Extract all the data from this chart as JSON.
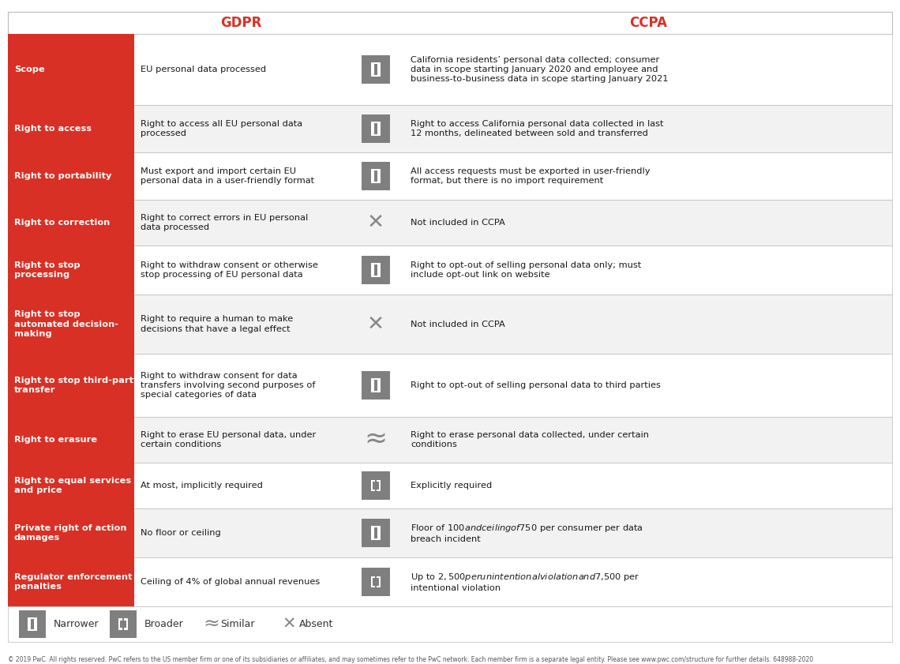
{
  "red_color": "#D93025",
  "gray_icon": "#888888",
  "border_color": "#BBBBBB",
  "rows": [
    {
      "topic": "Scope",
      "gdpr_text": "EU personal data processed",
      "icon": "narrower",
      "ccpa_text": "California residents’ personal data collected; consumer\ndata in scope starting January 2020 and employee and\nbusiness-to-business data in scope starting January 2021"
    },
    {
      "topic": "Right to access",
      "gdpr_text": "Right to access all EU personal data\nprocessed",
      "icon": "narrower",
      "ccpa_text": "Right to access California personal data collected in last\n12 months, delineated between sold and transferred"
    },
    {
      "topic": "Right to portability",
      "gdpr_text": "Must export and import certain EU\npersonal data in a user-friendly format",
      "icon": "narrower",
      "ccpa_text": "All access requests must be exported in user-friendly\nformat, but there is no import requirement"
    },
    {
      "topic": "Right to correction",
      "gdpr_text": "Right to correct errors in EU personal\ndata processed",
      "icon": "absent",
      "ccpa_text": "Not included in CCPA"
    },
    {
      "topic": "Right to stop\nprocessing",
      "gdpr_text": "Right to withdraw consent or otherwise\nstop processing of EU personal data",
      "icon": "narrower",
      "ccpa_text": "Right to opt-out of selling personal data only; must\ninclude opt-out link on website"
    },
    {
      "topic": "Right to stop\nautomated decision-\nmaking",
      "gdpr_text": "Right to require a human to make\ndecisions that have a legal effect",
      "icon": "absent",
      "ccpa_text": "Not included in CCPA"
    },
    {
      "topic": "Right to stop third-party\ntransfer",
      "gdpr_text": "Right to withdraw consent for data\ntransfers involving second purposes of\nspecial categories of data",
      "icon": "narrower",
      "ccpa_text": "Right to opt-out of selling personal data to third parties"
    },
    {
      "topic": "Right to erasure",
      "gdpr_text": "Right to erase EU personal data, under\ncertain conditions",
      "icon": "similar",
      "ccpa_text": "Right to erase personal data collected, under certain\nconditions"
    },
    {
      "topic": "Right to equal services\nand price",
      "gdpr_text": "At most, implicitly required",
      "icon": "broader",
      "ccpa_text": "Explicitly required"
    },
    {
      "topic": "Private right of action\ndamages",
      "gdpr_text": "No floor or ceiling",
      "icon": "narrower",
      "ccpa_text": "Floor of $100 and ceiling of $750 per consumer per data\nbreach incident"
    },
    {
      "topic": "Regulator enforcement\npenalties",
      "gdpr_text": "Ceiling of 4% of global annual revenues",
      "icon": "broader",
      "ccpa_text": "Up to $2,500 per unintentional violation and $7,500 per\nintentional violation"
    }
  ],
  "legend_text": "© 2019 PwC. All rights reserved. PwC refers to the US member firm or one of its subsidiaries or affiliates, and may sometimes refer to the PwC network. Each member firm is a separate legal entity. Please see www.pwc.com/structure for further details. 648988-2020"
}
